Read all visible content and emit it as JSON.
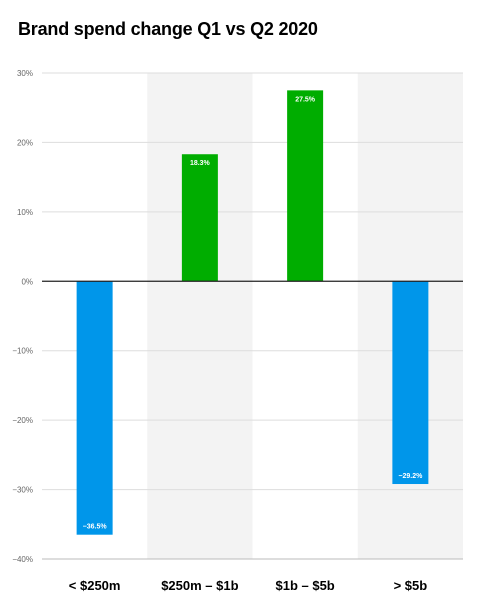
{
  "chart_data": {
    "type": "bar",
    "title": "Brand spend change Q1 vs Q2 2020",
    "categories": [
      "< $250m",
      "$250m – $1b",
      "$1b – $5b",
      "> $5b"
    ],
    "values": [
      -36.5,
      18.3,
      27.5,
      -29.2
    ],
    "data_labels": [
      "−36.5%",
      "18.3%",
      "27.5%",
      "−29.2%"
    ],
    "xlabel": "",
    "ylabel": "",
    "ylim": [
      -40,
      30
    ],
    "y_ticks": [
      30,
      20,
      10,
      0,
      -10,
      -20,
      -30,
      -40
    ],
    "y_tick_labels": [
      "30%",
      "20%",
      "10%",
      "0%",
      "−10%",
      "−20%",
      "−30%",
      "−40%"
    ],
    "grid": true,
    "legend": "none",
    "colors": {
      "positive": "#00ad00",
      "negative": "#0096ea",
      "band": "#f3f3f3",
      "grid": "#dddddd",
      "zero_line": "#222222"
    }
  }
}
